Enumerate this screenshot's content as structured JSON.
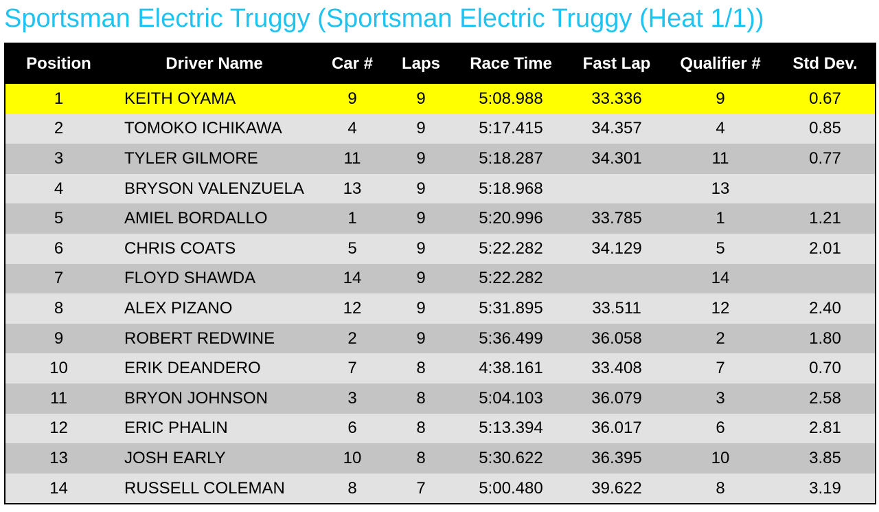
{
  "header": {
    "title": "Sportsman Electric Truggy (Sportsman Electric Truggy (Heat 1/1))"
  },
  "table": {
    "columns": [
      "Position",
      "Driver Name",
      "Car #",
      "Laps",
      "Race Time",
      "Fast Lap",
      "Qualifier #",
      "Std Dev."
    ],
    "rows": [
      [
        "1",
        "KEITH OYAMA",
        "9",
        "9",
        "5:08.988",
        "33.336",
        "9",
        "0.67"
      ],
      [
        "2",
        "TOMOKO ICHIKAWA",
        "4",
        "9",
        "5:17.415",
        "34.357",
        "4",
        "0.85"
      ],
      [
        "3",
        "TYLER GILMORE",
        "11",
        "9",
        "5:18.287",
        "34.301",
        "11",
        "0.77"
      ],
      [
        "4",
        "BRYSON VALENZUELA",
        "13",
        "9",
        "5:18.968",
        null,
        "13",
        null
      ],
      [
        "5",
        "AMIEL BORDALLO",
        "1",
        "9",
        "5:20.996",
        "33.785",
        "1",
        "1.21"
      ],
      [
        "6",
        "CHRIS COATS",
        "5",
        "9",
        "5:22.282",
        "34.129",
        "5",
        "2.01"
      ],
      [
        "7",
        "FLOYD SHAWDA",
        "14",
        "9",
        "5:22.282",
        null,
        "14",
        null
      ],
      [
        "8",
        "ALEX PIZANO",
        "12",
        "9",
        "5:31.895",
        "33.511",
        "12",
        "2.40"
      ],
      [
        "9",
        "ROBERT REDWINE",
        "2",
        "9",
        "5:36.499",
        "36.058",
        "2",
        "1.80"
      ],
      [
        "10",
        "ERIK DEANDERO",
        "7",
        "8",
        "4:38.161",
        "33.408",
        "7",
        "0.70"
      ],
      [
        "11",
        "BRYON JOHNSON",
        "3",
        "8",
        "5:04.103",
        "36.079",
        "3",
        "2.58"
      ],
      [
        "12",
        "ERIC PHALIN",
        "6",
        "8",
        "5:13.394",
        "36.017",
        "6",
        "2.81"
      ],
      [
        "13",
        "JOSH EARLY",
        "10",
        "8",
        "5:30.622",
        "36.395",
        "10",
        "3.85"
      ],
      [
        "14",
        "RUSSELL COLEMAN",
        "8",
        "7",
        "5:00.480",
        "39.622",
        "8",
        "3.19"
      ]
    ]
  }
}
